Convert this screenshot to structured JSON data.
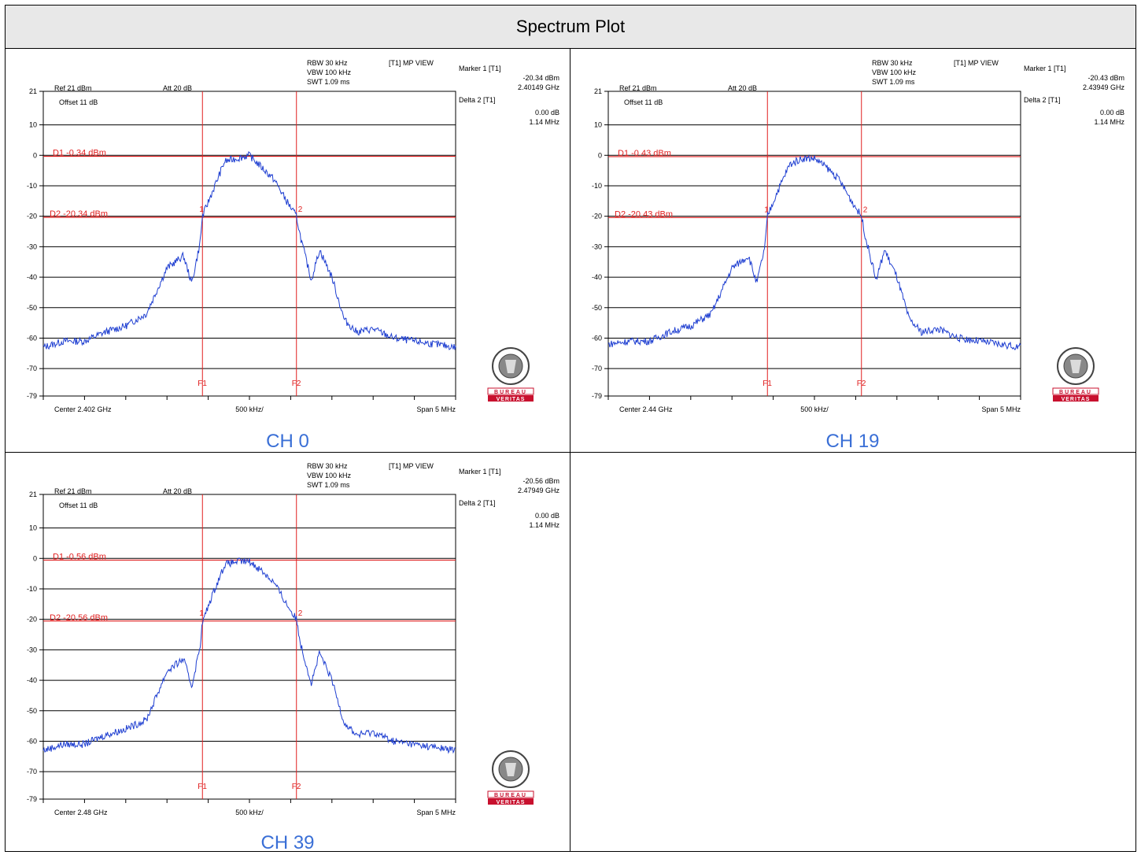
{
  "header": {
    "title": "Spectrum Plot"
  },
  "colors": {
    "trace": "#1f3fd1",
    "marker": "#e02020",
    "grid": "#000000",
    "caption": "#3a6fd6",
    "logo_red": "#c8102e"
  },
  "logo": {
    "top": "BUREAU VERITAS",
    "year": "1828",
    "band1": "BUREAU",
    "band2": "VERITAS"
  },
  "chart_data": [
    {
      "type": "line",
      "caption": "CH 0",
      "ylim": [
        -79,
        21
      ],
      "yticks": [
        "21",
        "10",
        "0",
        "-10",
        "-20",
        "-30",
        "-40",
        "-50",
        "-60",
        "-70",
        "-79"
      ],
      "top_labels": {
        "ref": "Ref 21 dBm",
        "att": "Att  20 dB",
        "offset": "Offset 11 dB",
        "rbw": "RBW 30 kHz",
        "vbw": "VBW 100 kHz",
        "swt": "SWT 1.09 ms",
        "mode": "[T1] MP VIEW"
      },
      "marker": {
        "m1_title": "Marker 1 [T1]",
        "m1_level": "-20.34 dBm",
        "m1_freq": "2.40149 GHz",
        "d2_title": "Delta 2 [T1]",
        "d2_level": "0.00 dB",
        "d2_freq": "1.14 MHz"
      },
      "display_lines": {
        "d1": "D1 -0.34 dBm",
        "d1_value": -0.34,
        "d2": "D2 -20.34 dBm",
        "d2_value": -20.34
      },
      "markers_f": {
        "f1": "F1",
        "f2": "F2",
        "m1": "1",
        "m2": "2"
      },
      "bottom_labels": {
        "center": "Center 2.402 GHz",
        "div": "500 kHz/",
        "span": "Span 5 MHz"
      },
      "x_offset_mhz": [
        -2.5,
        -2.25,
        -2.0,
        -1.75,
        -1.5,
        -1.25,
        -1.0,
        -0.8,
        -0.7,
        -0.6,
        -0.57,
        -0.45,
        -0.3,
        -0.15,
        0.0,
        0.15,
        0.3,
        0.45,
        0.57,
        0.62,
        0.75,
        0.85,
        1.0,
        1.15,
        1.3,
        1.5,
        1.75,
        2.0,
        2.25,
        2.5
      ],
      "y_dbm": [
        -63,
        -61,
        -61,
        -58,
        -56,
        -52,
        -37,
        -33,
        -42,
        -29,
        -20,
        -12,
        -2,
        -1,
        0,
        -4,
        -8,
        -15,
        -20,
        -27,
        -41,
        -31,
        -40,
        -54,
        -58,
        -57,
        -60,
        -61,
        -62,
        -63
      ]
    },
    {
      "type": "line",
      "caption": "CH 19",
      "ylim": [
        -79,
        21
      ],
      "yticks": [
        "21",
        "10",
        "0",
        "-10",
        "-20",
        "-30",
        "-40",
        "-50",
        "-60",
        "-70",
        "-79"
      ],
      "top_labels": {
        "ref": "Ref 21 dBm",
        "att": "Att  20 dB",
        "offset": "Offset 11 dB",
        "rbw": "RBW 30 kHz",
        "vbw": "VBW 100 kHz",
        "swt": "SWT 1.09 ms",
        "mode": "[T1] MP VIEW"
      },
      "marker": {
        "m1_title": "Marker 1 [T1]",
        "m1_level": "-20.43 dBm",
        "m1_freq": "2.43949 GHz",
        "d2_title": "Delta 2 [T1]",
        "d2_level": "0.00 dB",
        "d2_freq": "1.14 MHz"
      },
      "display_lines": {
        "d1": "D1 -0.43 dBm",
        "d1_value": -0.43,
        "d2": "D2 -20.43 dBm",
        "d2_value": -20.43
      },
      "markers_f": {
        "f1": "F1",
        "f2": "F2",
        "m1": "1",
        "m2": "2"
      },
      "bottom_labels": {
        "center": "Center 2.44 GHz",
        "div": "500 kHz/",
        "span": "Span 5 MHz"
      },
      "x_offset_mhz": [
        -2.5,
        -2.25,
        -2.0,
        -1.75,
        -1.5,
        -1.25,
        -1.0,
        -0.8,
        -0.7,
        -0.6,
        -0.57,
        -0.45,
        -0.3,
        -0.15,
        0.0,
        0.15,
        0.3,
        0.45,
        0.57,
        0.62,
        0.75,
        0.85,
        1.0,
        1.15,
        1.3,
        1.5,
        1.75,
        2.0,
        2.25,
        2.5
      ],
      "y_dbm": [
        -62,
        -61,
        -61,
        -58,
        -56,
        -52,
        -37,
        -33,
        -42,
        -30,
        -20,
        -12,
        -3,
        -1,
        -1,
        -4,
        -8,
        -15,
        -20,
        -27,
        -41,
        -31,
        -40,
        -54,
        -58,
        -57,
        -60,
        -61,
        -62,
        -63
      ]
    },
    {
      "type": "line",
      "caption": "CH 39",
      "ylim": [
        -79,
        21
      ],
      "yticks": [
        "21",
        "10",
        "0",
        "-10",
        "-20",
        "-30",
        "-40",
        "-50",
        "-60",
        "-70",
        "-79"
      ],
      "top_labels": {
        "ref": "Ref 21 dBm",
        "att": "Att  20 dB",
        "offset": "Offset 11 dB",
        "rbw": "RBW 30 kHz",
        "vbw": "VBW 100 kHz",
        "swt": "SWT 1.09 ms",
        "mode": "[T1] MP VIEW"
      },
      "marker": {
        "m1_title": "Marker 1 [T1]",
        "m1_level": "-20.56 dBm",
        "m1_freq": "2.47949 GHz",
        "d2_title": "Delta 2 [T1]",
        "d2_level": "0.00 dB",
        "d2_freq": "1.14 MHz"
      },
      "display_lines": {
        "d1": "D1 -0.56 dBm",
        "d1_value": -0.56,
        "d2": "D2 -20.56 dBm",
        "d2_value": -20.56
      },
      "markers_f": {
        "f1": "F1",
        "f2": "F2",
        "m1": "1",
        "m2": "2"
      },
      "bottom_labels": {
        "center": "Center 2.48 GHz",
        "div": "500 kHz/",
        "span": "Span 5 MHz"
      },
      "x_offset_mhz": [
        -2.5,
        -2.25,
        -2.0,
        -1.75,
        -1.5,
        -1.25,
        -1.0,
        -0.8,
        -0.7,
        -0.6,
        -0.57,
        -0.45,
        -0.3,
        -0.15,
        0.0,
        0.15,
        0.3,
        0.45,
        0.57,
        0.62,
        0.75,
        0.85,
        1.0,
        1.15,
        1.3,
        1.5,
        1.75,
        2.0,
        2.25,
        2.5
      ],
      "y_dbm": [
        -63,
        -61,
        -61,
        -58,
        -56,
        -53,
        -37,
        -33,
        -42,
        -29,
        -21,
        -12,
        -2,
        -1,
        -1,
        -4,
        -8,
        -15,
        -20,
        -28,
        -41,
        -31,
        -40,
        -54,
        -58,
        -57,
        -60,
        -61,
        -62,
        -63
      ]
    }
  ]
}
